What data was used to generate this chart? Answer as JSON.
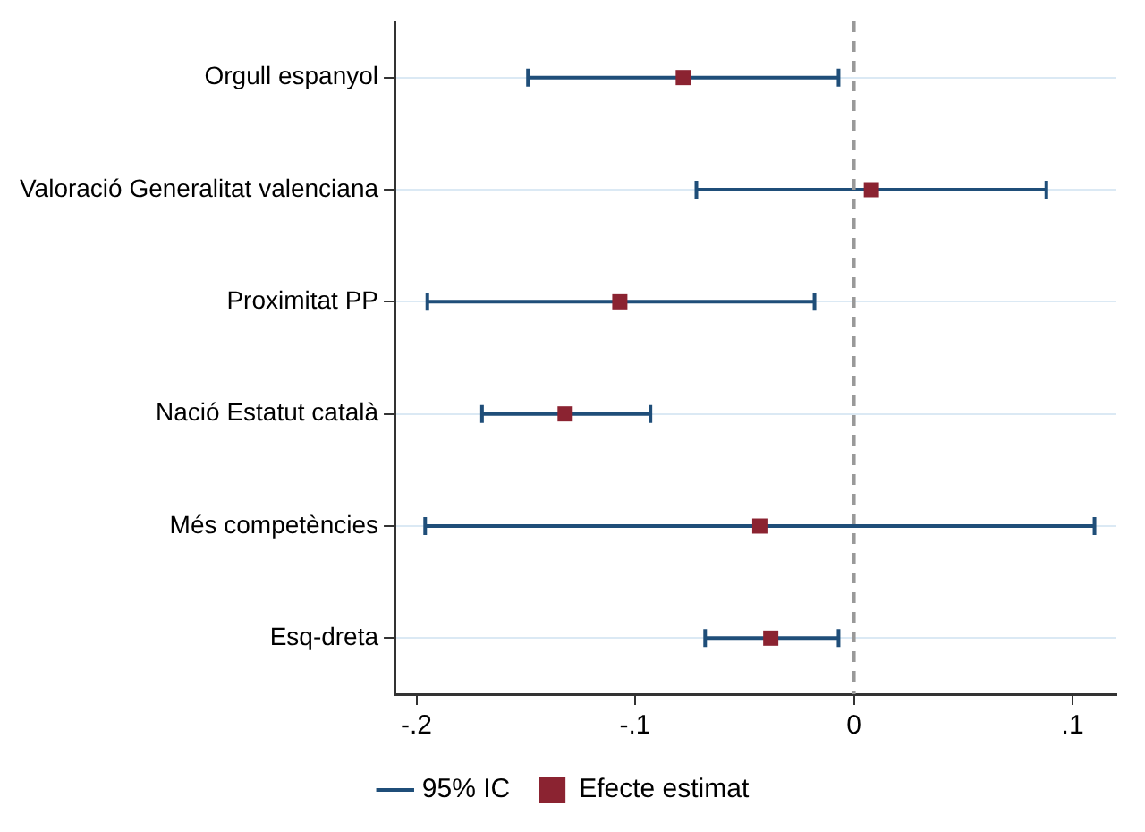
{
  "chart_data": {
    "type": "scatter",
    "orientation": "horizontal",
    "categories": [
      "Orgull espanyol",
      "Valoració Generalitat valenciana",
      "Proximitat PP",
      "Nació Estatut català",
      "Més competències",
      "Esq-dreta"
    ],
    "series": [
      {
        "name": "Efecte estimat",
        "color": "#1f4e79",
        "colors": [
          "#8b2331",
          "#8b2331",
          "#8b2331",
          "#8b2331",
          "#8b2331",
          "#8b2331"
        ],
        "marker": "square",
        "values": [
          -0.078,
          0.008,
          -0.107,
          -0.132,
          -0.043,
          -0.038
        ],
        "errors": [
          [
            -0.149,
            -0.007
          ],
          [
            -0.072,
            0.088
          ],
          [
            -0.195,
            -0.018
          ],
          [
            -0.17,
            -0.093
          ],
          [
            -0.196,
            0.11
          ],
          [
            -0.068,
            -0.007
          ]
        ]
      }
    ],
    "annotations": [
      "95% IC"
    ],
    "xlim": [
      -0.21,
      0.12
    ],
    "xticks": [
      {
        "value": -0.2,
        "label": "-.2"
      },
      {
        "value": -0.1,
        "label": "-.1"
      },
      0,
      {
        "value": 0.1,
        "label": ".1"
      }
    ],
    "ref_lines": [
      {
        "axis": "x",
        "value": 0,
        "color": "#999999",
        "line_style": "dashed"
      }
    ],
    "grid": "y",
    "legend": "bottom"
  }
}
